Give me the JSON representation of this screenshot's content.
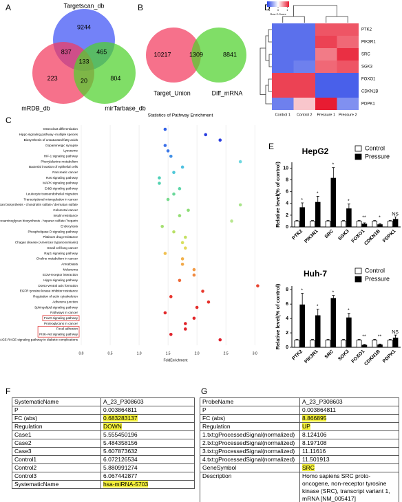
{
  "panel_labels": [
    "A",
    "B",
    "C",
    "D",
    "E",
    "F",
    "G"
  ],
  "chart_data": [
    {
      "type": "venn",
      "sets": [
        {
          "name": "Targetscan_db",
          "color": "#3d52f5"
        },
        {
          "name": "mRDB_db",
          "color": "#f23a5e"
        },
        {
          "name": "mirTarbase_db",
          "color": "#4fd12c"
        }
      ],
      "regions": [
        {
          "sets": [
            0
          ],
          "value": 9244
        },
        {
          "sets": [
            0,
            1
          ],
          "value": 837
        },
        {
          "sets": [
            0,
            2
          ],
          "value": 465
        },
        {
          "sets": [
            0,
            1,
            2
          ],
          "value": 133
        },
        {
          "sets": [
            1
          ],
          "value": 223
        },
        {
          "sets": [
            1,
            2
          ],
          "value": 20
        },
        {
          "sets": [
            2
          ],
          "value": 804
        }
      ]
    },
    {
      "type": "venn",
      "sets": [
        {
          "name": "Target_Union",
          "color": "#f23a5e"
        },
        {
          "name": "Diff_mRNA",
          "color": "#4fd12c"
        }
      ],
      "regions": [
        {
          "sets": [
            0
          ],
          "value": 10217
        },
        {
          "sets": [
            0,
            1
          ],
          "value": 1309
        },
        {
          "sets": [
            1
          ],
          "value": 8841
        }
      ]
    },
    {
      "type": "dot",
      "title": "Statistics of Pathway Enrichment",
      "x_label": "FoldEnrichment",
      "categories": [
        "Osteoclast differentiation",
        "Hippo signaling pathway -multiple species",
        "Biosynthesis of unsaturated fatty acids",
        "Dopaminergic synapse",
        "Lysosome",
        "HIF-1 signaling pathway",
        "Phenylalanine metabolism",
        "Bacterial invasion of epithelial cells",
        "Pancreatic cancer",
        "Ras signaling pathway",
        "MAPK signaling pathway",
        "ErbB signaling pathway",
        "Leukocyte transendothelial migration",
        "Transcriptional misregulation in cancer",
        "Glycosaminoglycan biosynthesis - chondroitin sulfate / dermatan sulfate",
        "Colorectal cancer",
        "Insulin resistance",
        "Glycosaminoglycan biosynthesis - heparan sulfate / heparin",
        "Endocytosis",
        "Phospholipase D signaling pathway",
        "Platinum drug resistance",
        "Chagas disease (American trypanosomiasis)",
        "Small cell lung cancer",
        "Rap1 signaling pathway",
        "Choline metabolism in cancer",
        "Amoebiasis",
        "Melanoma",
        "ECM-receptor interaction",
        "Hippo signaling pathway",
        "Dorso-ventral axis formation",
        "EGFR tyrosine kinase inhibitor resistance",
        "Regulation of actin cytoskeleton",
        "Adherens junction",
        "Sphingolipid signaling pathway",
        "Pathways in cancer",
        "FoxO signaling pathway",
        "Proteoglycans in cancer",
        "Focal adhesion",
        "PI3K-Akt signaling pathway",
        "AGE-RAGE signaling pathway in diabetic complications"
      ],
      "values": [
        1.45,
        2.15,
        2.4,
        1.45,
        1.5,
        1.55,
        2.75,
        1.75,
        1.6,
        1.35,
        1.35,
        1.7,
        1.6,
        1.5,
        2.75,
        1.85,
        1.7,
        2.6,
        1.4,
        1.6,
        1.8,
        1.75,
        1.8,
        1.45,
        1.75,
        1.75,
        1.95,
        1.95,
        1.7,
        3.05,
        2.1,
        1.55,
        2.2,
        2.0,
        1.45,
        1.95,
        1.8,
        1.8,
        1.55,
        2.4
      ],
      "colors": [
        "#2f5fe6",
        "#2a3ee0",
        "#2a3ee0",
        "#3a6ee8",
        "#3b78e8",
        "#3f8ee6",
        "#6fd8e0",
        "#4cc0e0",
        "#4fc8d8",
        "#4fd0b8",
        "#52d2b0",
        "#5cd6a8",
        "#6ad89a",
        "#78da8c",
        "#a8e48a",
        "#8ede78",
        "#94de74",
        "#b8e690",
        "#a4e070",
        "#b8e066",
        "#c4e062",
        "#d8e060",
        "#e4d85a",
        "#f0c050",
        "#f2b04a",
        "#f2a848",
        "#f29a44",
        "#f08a40",
        "#ee6a38",
        "#e84430",
        "#e83a2e",
        "#e8342c",
        "#e6302a",
        "#e42c2a",
        "#e2282a",
        "#e2262a",
        "#e0242a",
        "#e0222a",
        "#e0202a",
        "#e01e2a"
      ],
      "highlight_boxes": [
        [
          35
        ],
        [
          37,
          38
        ]
      ],
      "xlim": [
        0,
        3.2
      ],
      "xticks": [
        {
          "value": 0,
          "label": "0.0"
        },
        0.5,
        {
          "value": 1,
          "label": "1.0"
        },
        1.5,
        {
          "value": 2,
          "label": "2.0"
        },
        2.5,
        {
          "value": 3,
          "label": "3.0"
        }
      ],
      "grid": true
    },
    {
      "type": "heatmap",
      "rows": [
        "PTK2",
        "PIK3R1",
        "SRC",
        "SGK3",
        "FOXO1",
        "CDKN1B",
        "PDPK1"
      ],
      "columns": [
        "Control 1",
        "Control 2",
        "Pressure 1",
        "Pressure 2"
      ],
      "values": [
        [
          -0.9,
          -0.9,
          0.9,
          0.9
        ],
        [
          -0.9,
          -0.9,
          1.0,
          0.8
        ],
        [
          -0.9,
          -0.9,
          0.7,
          1.1
        ],
        [
          -0.9,
          -0.8,
          0.8,
          0.9
        ],
        [
          1.0,
          1.0,
          -1.0,
          -1.0
        ],
        [
          1.0,
          1.0,
          -1.0,
          -1.0
        ],
        [
          -0.8,
          0.3,
          1.2,
          -0.7
        ]
      ],
      "color_key_title": "Row Z-Score",
      "zlim": [
        -1.2,
        1.2
      ],
      "zticks": [
        -1,
        0,
        1
      ]
    },
    {
      "type": "bar",
      "title": "HepG2",
      "y_label": "Relative level(% of control)",
      "categories": [
        "PTK2",
        "PIK3R1",
        "SRC",
        "SGK3",
        "FOXO1",
        "CDKN1B",
        "PDPK1"
      ],
      "series": [
        {
          "name": "Control",
          "color": "#ffffff",
          "values": [
            1,
            1,
            1,
            1,
            1,
            1,
            1
          ],
          "errors": [
            0.1,
            0.1,
            0.1,
            0.1,
            0.1,
            0.1,
            0.1
          ]
        },
        {
          "name": "Pressure",
          "color": "#000000",
          "values": [
            3.3,
            4.2,
            8.3,
            3.1,
            0.5,
            0.4,
            1.3
          ],
          "errors": [
            0.8,
            1.0,
            1.8,
            0.8,
            0.2,
            0.15,
            0.4
          ]
        }
      ],
      "annotations": [
        "*",
        "*",
        "*",
        "*",
        "**",
        "*",
        "NS"
      ],
      "ylim": [
        0,
        11
      ],
      "yticks": [
        0,
        2,
        4,
        6,
        8,
        10
      ]
    },
    {
      "type": "bar",
      "title": "Huh-7",
      "y_label": "Relative level(% of control)",
      "categories": [
        "PTK2",
        "PIK3R1",
        "SRC",
        "SGK3",
        "FOXO1",
        "CDKN1B",
        "PDPK1"
      ],
      "series": [
        {
          "name": "Control",
          "color": "#ffffff",
          "values": [
            1,
            1,
            1,
            1,
            1,
            1,
            1
          ],
          "errors": [
            0.1,
            0.1,
            0.1,
            0.1,
            0.1,
            0.1,
            0.1
          ]
        },
        {
          "name": "Pressure",
          "color": "#000000",
          "values": [
            5.9,
            4.4,
            6.8,
            4.1,
            0.3,
            0.35,
            1.3
          ],
          "errors": [
            1.6,
            0.9,
            0.4,
            0.6,
            0.1,
            0.1,
            0.4
          ]
        }
      ],
      "annotations": [
        "*",
        "*",
        "*",
        "*",
        "**",
        "**",
        "NS"
      ],
      "ylim": [
        0,
        8.5
      ],
      "yticks": [
        0,
        2,
        4,
        6,
        8
      ]
    }
  ],
  "tables": [
    {
      "rows": [
        [
          "SystematicName",
          "A_23_P308603"
        ],
        [
          "P",
          "0.003864811"
        ],
        [
          "FC (abs)",
          "0.683283137"
        ],
        [
          "Regulation",
          "DOWN"
        ],
        [
          "Case1",
          "5.555450196"
        ],
        [
          "Case2",
          "5.484358156"
        ],
        [
          "Case3",
          "5.607873632"
        ],
        [
          "Control1",
          "6.072126534"
        ],
        [
          "Control2",
          "5.880991274"
        ],
        [
          "Control3",
          "6.067442877"
        ],
        [
          "SystematicName",
          "hsa-miRNA-5703"
        ]
      ],
      "highlight_rows": [
        2,
        3,
        10
      ]
    },
    {
      "rows": [
        [
          "ProbeName",
          "A_23_P308603"
        ],
        [
          "P",
          "0.003864811"
        ],
        [
          "FC (abs)",
          "8.866895"
        ],
        [
          "Regulation",
          "UP"
        ],
        [
          "1.txt:gProcessedSignal(normalized)",
          "8.124106"
        ],
        [
          "2.txt:gProcessedSignal(normalized)",
          "8.197108"
        ],
        [
          "3.txt:gProcessedSignal(normalized)",
          "11.11616"
        ],
        [
          "4.txt:gProcessedSignal(normalized)",
          "11.501913"
        ],
        [
          "GeneSymbol",
          "SRC"
        ],
        [
          "Description",
          "Homo sapiens SRC proto-oncogene, non-receptor tyrosine kinase (SRC), transcript variant 1, mRNA [NM_005417]"
        ]
      ],
      "highlight_rows": [
        2,
        3,
        8
      ]
    }
  ]
}
